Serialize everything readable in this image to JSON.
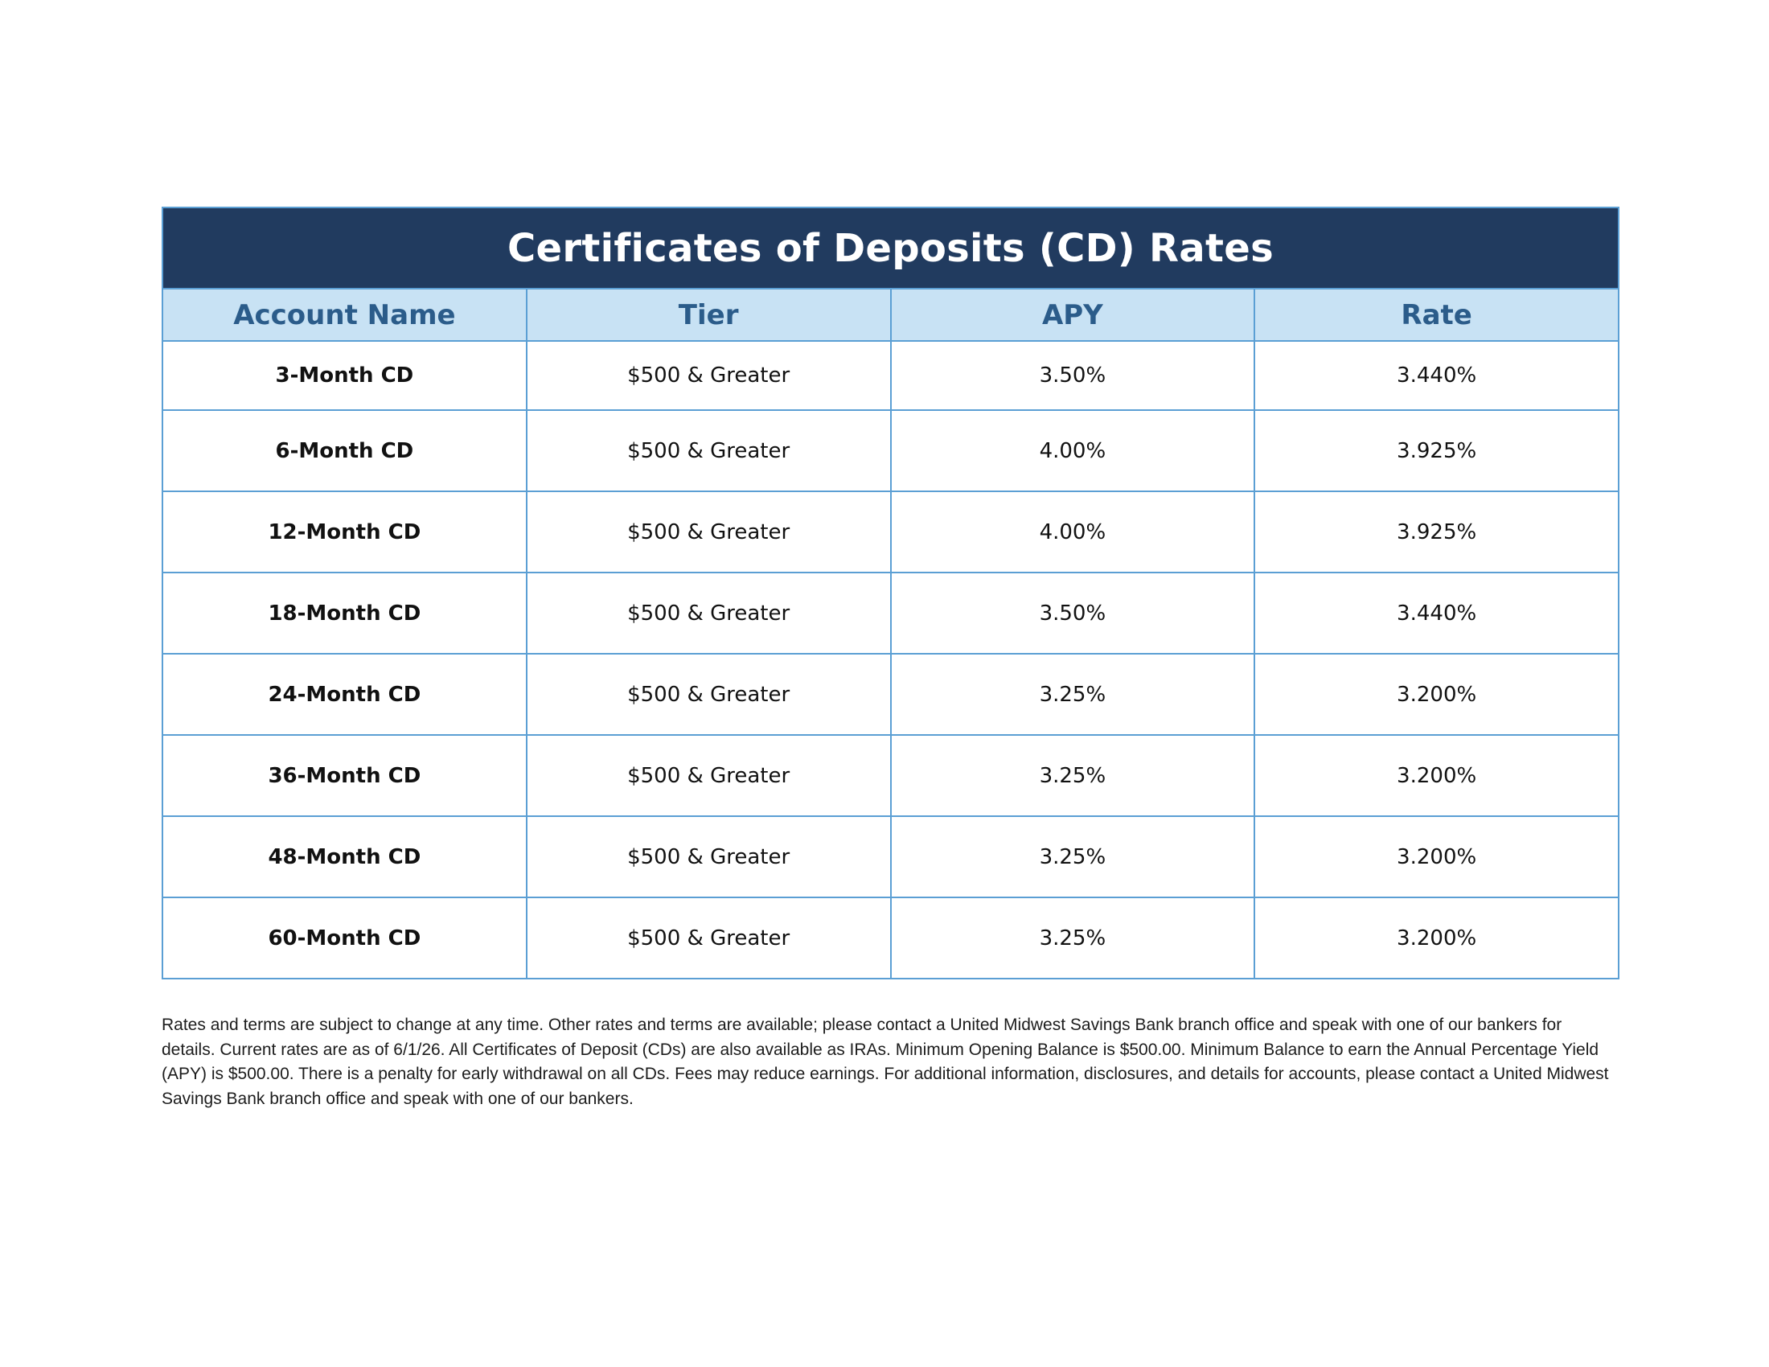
{
  "table": {
    "title": "Certificates of Deposits (CD) Rates",
    "columns": [
      "Account Name",
      "Tier",
      "APY",
      "Rate"
    ],
    "rows": [
      {
        "account": "3-Month CD",
        "tier": "$500 & Greater",
        "apy": "3.50%",
        "rate": "3.440%"
      },
      {
        "account": "6-Month CD",
        "tier": "$500 & Greater",
        "apy": "4.00%",
        "rate": "3.925%"
      },
      {
        "account": "12-Month CD",
        "tier": "$500 & Greater",
        "apy": "4.00%",
        "rate": "3.925%"
      },
      {
        "account": "18-Month CD",
        "tier": "$500 & Greater",
        "apy": "3.50%",
        "rate": "3.440%"
      },
      {
        "account": "24-Month CD",
        "tier": "$500 & Greater",
        "apy": "3.25%",
        "rate": "3.200%"
      },
      {
        "account": "36-Month CD",
        "tier": "$500 & Greater",
        "apy": "3.25%",
        "rate": "3.200%"
      },
      {
        "account": "48-Month CD",
        "tier": "$500 & Greater",
        "apy": "3.25%",
        "rate": "3.200%"
      },
      {
        "account": "60-Month CD",
        "tier": "$500 & Greater",
        "apy": "3.25%",
        "rate": "3.200%"
      }
    ]
  },
  "disclaimer": "Rates and terms are subject to change at any time. Other rates and terms are available; please contact a United Midwest Savings Bank branch office and speak with one of our bankers for details. Current rates are as of 6/1/26. All Certificates of Deposit (CDs) are also available as IRAs. Minimum Opening Balance is $500.00. Minimum Balance to earn the Annual Percentage Yield (APY) is $500.00. There is a penalty for early withdrawal on all CDs. Fees may reduce earnings. For additional information, disclosures, and details for accounts, please contact a United Midwest Savings Bank branch office and speak with one of our bankers.",
  "colors": {
    "title_bg": "#213b5f",
    "header_bg": "#c8e2f4",
    "header_text": "#2b5c8a",
    "border": "#5b9fd4"
  }
}
